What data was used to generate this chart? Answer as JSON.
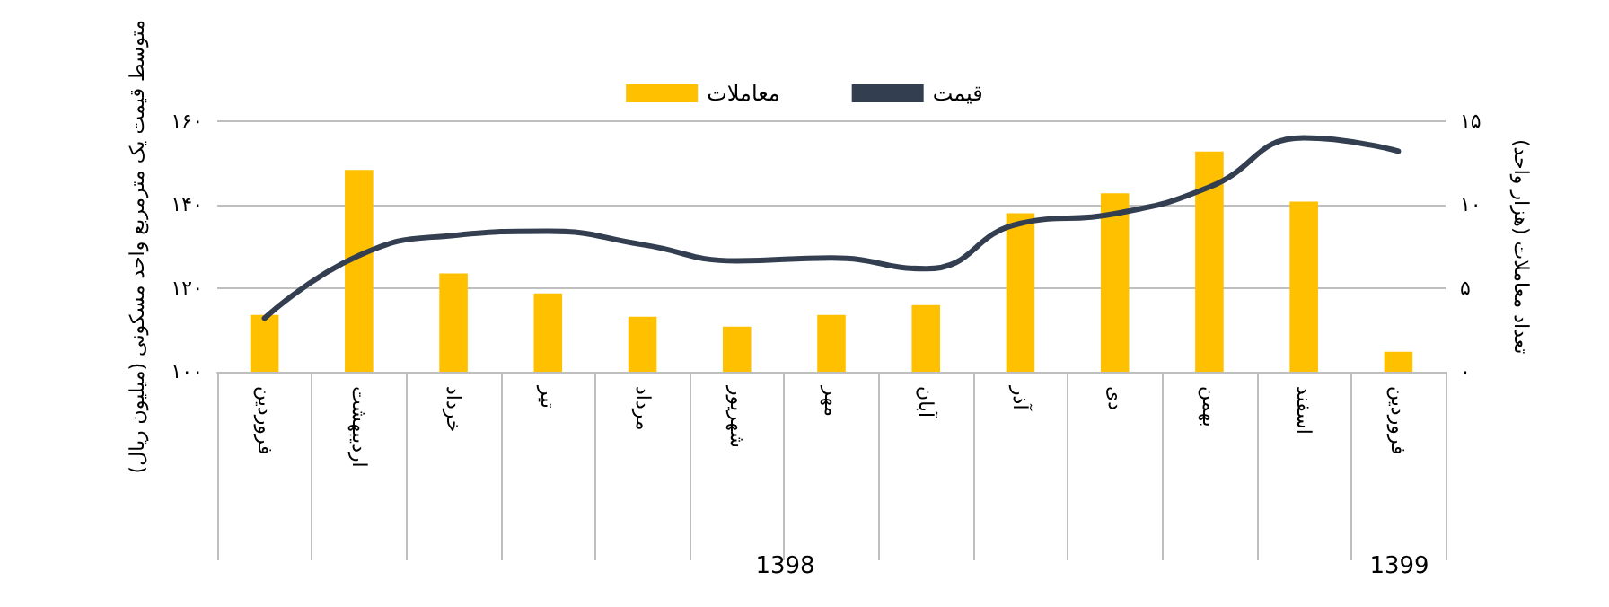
{
  "chart_data": {
    "type": "bar",
    "ylabel": "متوسط قیمت یک مترمربع واحد مسکونی (میلیون ریال)",
    "y2label": "تعداد معاملات (هزار واحد)",
    "categories": [
      "فروردین",
      "اردیبهشت",
      "خرداد",
      "تیر",
      "مرداد",
      "شهریور",
      "مهر",
      "آبان",
      "آذر",
      "دی",
      "بهمن",
      "اسفند",
      "فروردین"
    ],
    "series": [
      {
        "name": "معاملات",
        "axis": "y2",
        "color": "#ffc000",
        "values": [
          3.4,
          12.1,
          5.9,
          4.7,
          3.3,
          2.7,
          3.4,
          4.0,
          9.5,
          10.7,
          13.2,
          10.2,
          1.2
        ]
      },
      {
        "name": "قیمت",
        "type": "line",
        "color": "#333f50",
        "values": [
          112.8,
          127.9,
          132.7,
          133.7,
          130.5,
          126.6,
          127.3,
          124.7,
          135.6,
          137.9,
          144.3,
          156.1,
          152.9
        ]
      }
    ],
    "ylim": [
      100,
      160
    ],
    "yticks": [
      {
        "value": 100,
        "label": "۱۰۰"
      },
      {
        "value": 120,
        "label": "۱۲۰"
      },
      {
        "value": 140,
        "label": "۱۴۰"
      },
      {
        "value": 160,
        "label": "۱۶۰"
      }
    ],
    "y2lim": [
      0,
      15
    ],
    "y2ticks": [
      {
        "value": 0,
        "label": "۰"
      },
      {
        "value": 5,
        "label": "۵"
      },
      {
        "value": 10,
        "label": "۱۰"
      },
      {
        "value": 15,
        "label": "۱۵"
      }
    ],
    "annotations": [
      "1398",
      "1399"
    ],
    "grid": "y",
    "legend": "top",
    "marker": "none",
    "line_style": "solid"
  }
}
